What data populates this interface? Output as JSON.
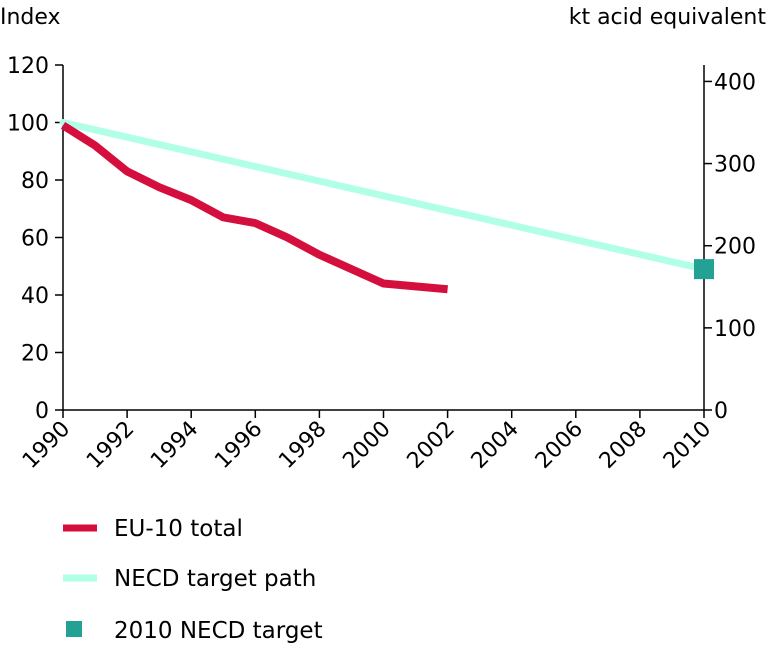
{
  "chart_data": {
    "type": "line",
    "title": "",
    "left_axis_title": "Index",
    "right_axis_title": "kt acid equivalent",
    "x": [
      1990,
      1991,
      1992,
      1993,
      1994,
      1995,
      1996,
      1997,
      1998,
      1999,
      2000,
      2001,
      2002,
      2003,
      2004,
      2005,
      2006,
      2007,
      2008,
      2009,
      2010
    ],
    "x_ticks": [
      "1990",
      "1992",
      "1994",
      "1996",
      "1998",
      "2000",
      "2002",
      "2004",
      "2006",
      "2008",
      "2010"
    ],
    "xlim": [
      1990,
      2010
    ],
    "ylim_left": [
      0,
      120
    ],
    "y_ticks_left": [
      "0",
      "20",
      "40",
      "60",
      "80",
      "100",
      "120"
    ],
    "ylim_right": [
      0,
      420
    ],
    "y_ticks_right": [
      "0",
      "100",
      "200",
      "300",
      "400"
    ],
    "series": [
      {
        "name": "EU-10 total",
        "color": "#d40f3d",
        "x": [
          1990,
          1991,
          1992,
          1993,
          1994,
          1995,
          1996,
          1997,
          1998,
          1999,
          2000,
          2001,
          2002
        ],
        "values": [
          99,
          92,
          83,
          77.5,
          73,
          67,
          65,
          60,
          54,
          49,
          44,
          43,
          42
        ]
      },
      {
        "name": "NECD target path",
        "color": "#b2ffe8",
        "x": [
          1990,
          2010
        ],
        "values": [
          100,
          49
        ]
      },
      {
        "name": "2010 NECD target",
        "type": "marker",
        "color": "#24a195",
        "x": [
          2010
        ],
        "values": [
          49
        ]
      }
    ],
    "legend": [
      "EU-10 total",
      "NECD target path",
      "2010 NECD target"
    ],
    "legend_position": "bottom-left",
    "grid": false
  }
}
